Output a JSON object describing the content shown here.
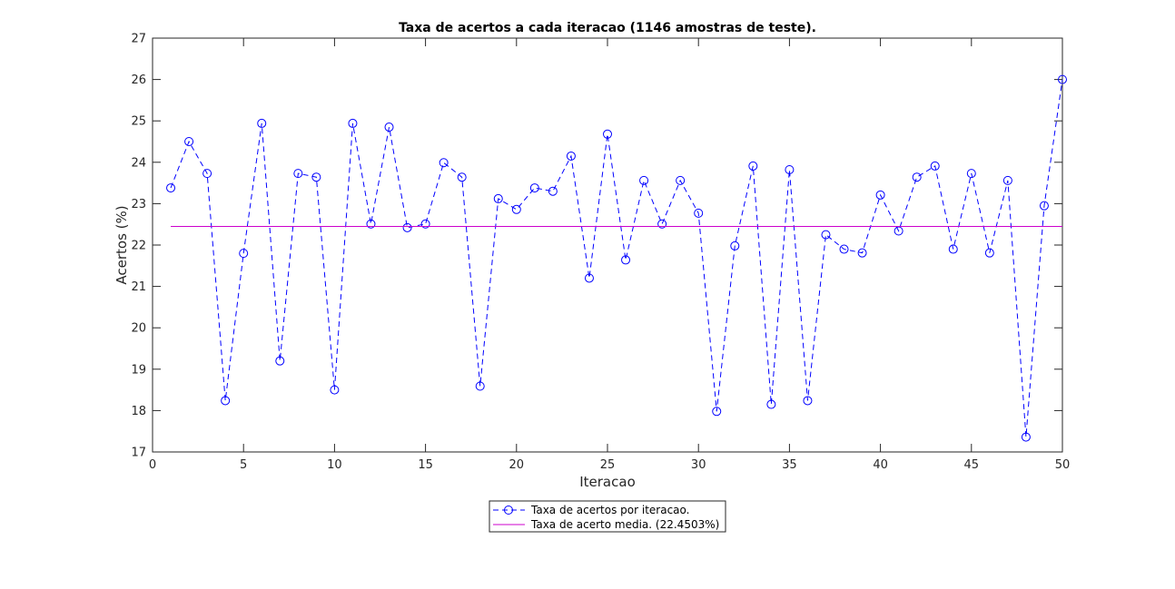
{
  "chart_data": {
    "type": "line",
    "title": "Taxa de acertos a cada iteracao (1146 amostras de teste).",
    "xlabel": "Iteracao",
    "ylabel": "Acertos (%)",
    "xlim": [
      0,
      50
    ],
    "ylim": [
      17,
      27
    ],
    "xticks": [
      0,
      5,
      10,
      15,
      20,
      25,
      30,
      35,
      40,
      45,
      50
    ],
    "yticks": [
      17,
      18,
      19,
      20,
      21,
      22,
      23,
      24,
      25,
      26,
      27
    ],
    "grid": false,
    "legend_position": "bottom-center (outside)",
    "series": [
      {
        "name": "Taxa de acertos por iteracao.",
        "color": "#0000ff",
        "line_style": "dashed",
        "marker": "circle",
        "x": [
          1,
          2,
          3,
          4,
          5,
          6,
          7,
          8,
          9,
          10,
          11,
          12,
          13,
          14,
          15,
          16,
          17,
          18,
          19,
          20,
          21,
          22,
          23,
          24,
          25,
          26,
          27,
          28,
          29,
          30,
          31,
          32,
          33,
          34,
          35,
          36,
          37,
          38,
          39,
          40,
          41,
          42,
          43,
          44,
          45,
          46,
          47,
          48,
          49,
          50
        ],
        "values": [
          23.38,
          24.5,
          23.73,
          18.24,
          21.8,
          24.94,
          19.2,
          23.73,
          23.64,
          18.5,
          24.94,
          22.51,
          24.85,
          22.42,
          22.51,
          23.99,
          23.64,
          18.59,
          23.12,
          22.86,
          23.38,
          23.3,
          24.15,
          21.2,
          24.68,
          21.64,
          23.56,
          22.51,
          23.56,
          22.77,
          17.98,
          21.98,
          23.91,
          18.15,
          23.82,
          18.24,
          22.25,
          21.9,
          21.81,
          23.21,
          22.34,
          23.64,
          23.91,
          21.9,
          23.73,
          21.81,
          23.56,
          17.36,
          22.95,
          26.0
        ]
      },
      {
        "name": "Taxa de acerto media. (22.4503%)",
        "color": "#cc00cc",
        "line_style": "solid",
        "marker": "none",
        "x": [
          1,
          50
        ],
        "values": [
          22.4503,
          22.4503
        ]
      }
    ]
  }
}
